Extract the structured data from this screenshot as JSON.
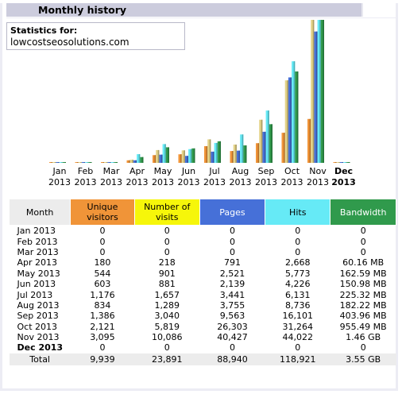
{
  "header": {
    "title": "Monthly history"
  },
  "stats": {
    "label": "Statistics for:",
    "site": "lowcostseosolutions.com"
  },
  "colors": {
    "unique_visitors": "#f09438",
    "visits": "#e4d488",
    "pages": "#4670d8",
    "hits": "#66eaf6",
    "bandwidth": "#309a4c"
  },
  "chart_data": {
    "type": "bar",
    "categories": [
      "Jan 2013",
      "Feb 2013",
      "Mar 2013",
      "Apr 2013",
      "May 2013",
      "Jun 2013",
      "Jul 2013",
      "Aug 2013",
      "Sep 2013",
      "Oct 2013",
      "Nov 2013",
      "Dec 2013"
    ],
    "month_labels": [
      "Jan",
      "Feb",
      "Mar",
      "Apr",
      "May",
      "Jun",
      "Jul",
      "Aug",
      "Sep",
      "Oct",
      "Nov",
      "Dec"
    ],
    "year_labels": [
      "2013",
      "2013",
      "2013",
      "2013",
      "2013",
      "2013",
      "2013",
      "2013",
      "2013",
      "2013",
      "2013",
      "2013"
    ],
    "current_month_index": 11,
    "series": [
      {
        "key": "unique_visitors",
        "values": [
          0,
          0,
          0,
          180,
          544,
          603,
          1176,
          834,
          1386,
          2121,
          3095,
          0
        ]
      },
      {
        "key": "visits",
        "values": [
          0,
          0,
          0,
          218,
          901,
          881,
          1657,
          1289,
          3040,
          5819,
          10086,
          0
        ]
      },
      {
        "key": "pages",
        "values": [
          0,
          0,
          0,
          791,
          2521,
          2139,
          3441,
          3755,
          9563,
          26303,
          40427,
          0
        ]
      },
      {
        "key": "hits",
        "values": [
          0,
          0,
          0,
          2668,
          5773,
          4226,
          6131,
          8736,
          16101,
          31264,
          44022,
          0
        ]
      },
      {
        "key": "bandwidth_mb",
        "values": [
          0,
          0,
          0,
          60.16,
          162.59,
          150.98,
          225.32,
          182.22,
          403.96,
          955.49,
          1495.04,
          0
        ]
      }
    ],
    "scale_groups": [
      [
        "unique_visitors",
        "visits"
      ],
      [
        "pages",
        "hits"
      ],
      [
        "bandwidth_mb"
      ]
    ]
  },
  "table": {
    "headers": {
      "month": "Month",
      "unique_visitors": "Unique visitors",
      "visits": "Number of visits",
      "pages": "Pages",
      "hits": "Hits",
      "bandwidth": "Bandwidth"
    },
    "rows": [
      {
        "month": "Jan 2013",
        "uv": "0",
        "nv": "0",
        "pg": "0",
        "ht": "0",
        "bw": "0"
      },
      {
        "month": "Feb 2013",
        "uv": "0",
        "nv": "0",
        "pg": "0",
        "ht": "0",
        "bw": "0"
      },
      {
        "month": "Mar 2013",
        "uv": "0",
        "nv": "0",
        "pg": "0",
        "ht": "0",
        "bw": "0"
      },
      {
        "month": "Apr 2013",
        "uv": "180",
        "nv": "218",
        "pg": "791",
        "ht": "2,668",
        "bw": "60.16 MB"
      },
      {
        "month": "May 2013",
        "uv": "544",
        "nv": "901",
        "pg": "2,521",
        "ht": "5,773",
        "bw": "162.59 MB"
      },
      {
        "month": "Jun 2013",
        "uv": "603",
        "nv": "881",
        "pg": "2,139",
        "ht": "4,226",
        "bw": "150.98 MB"
      },
      {
        "month": "Jul 2013",
        "uv": "1,176",
        "nv": "1,657",
        "pg": "3,441",
        "ht": "6,131",
        "bw": "225.32 MB"
      },
      {
        "month": "Aug 2013",
        "uv": "834",
        "nv": "1,289",
        "pg": "3,755",
        "ht": "8,736",
        "bw": "182.22 MB"
      },
      {
        "month": "Sep 2013",
        "uv": "1,386",
        "nv": "3,040",
        "pg": "9,563",
        "ht": "16,101",
        "bw": "403.96 MB"
      },
      {
        "month": "Oct 2013",
        "uv": "2,121",
        "nv": "5,819",
        "pg": "26,303",
        "ht": "31,264",
        "bw": "955.49 MB"
      },
      {
        "month": "Nov 2013",
        "uv": "3,095",
        "nv": "10,086",
        "pg": "40,427",
        "ht": "44,022",
        "bw": "1.46 GB"
      },
      {
        "month": "Dec 2013",
        "uv": "0",
        "nv": "0",
        "pg": "0",
        "ht": "0",
        "bw": "0"
      }
    ],
    "total": {
      "label": "Total",
      "uv": "9,939",
      "nv": "23,891",
      "pg": "88,940",
      "ht": "118,921",
      "bw": "3.55 GB"
    }
  }
}
